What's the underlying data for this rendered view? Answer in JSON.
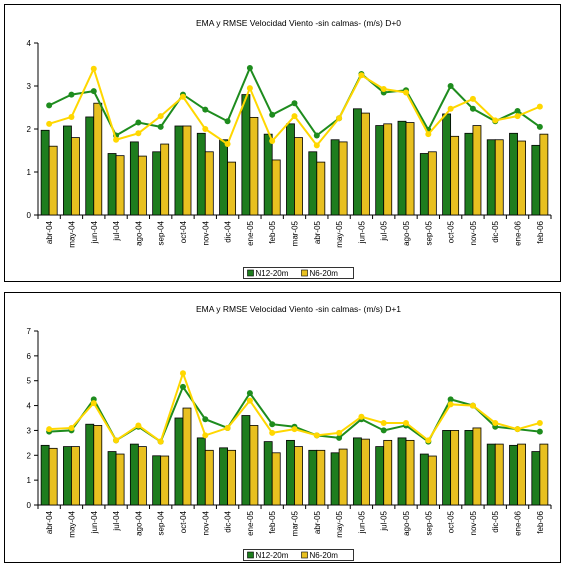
{
  "chart_data": [
    {
      "type": "bar",
      "title": "EMA y RMSE Velocidad Viento -sin calmas-  (m/s) D+0",
      "categories": [
        "abr-04",
        "may-04",
        "jun-04",
        "jul-04",
        "ago-04",
        "sep-04",
        "oct-04",
        "nov-04",
        "dic-04",
        "ene-05",
        "feb-05",
        "mar-05",
        "abr-05",
        "may-05",
        "jun-05",
        "jul-05",
        "ago-05",
        "sep-05",
        "oct-05",
        "nov-05",
        "dic-05",
        "ene-06",
        "feb-06"
      ],
      "ylim": [
        0,
        4
      ],
      "yticks": [
        "0",
        "1",
        "2",
        "3",
        "4"
      ],
      "series": [
        {
          "name": "N12-20m",
          "kind": "bar",
          "color": "#1e7d1e",
          "values": [
            1.97,
            2.07,
            2.28,
            1.43,
            1.7,
            1.47,
            2.07,
            1.9,
            1.75,
            2.8,
            1.88,
            2.12,
            1.47,
            1.75,
            2.47,
            2.08,
            2.18,
            1.43,
            2.35,
            1.9,
            1.75,
            1.9,
            1.62
          ]
        },
        {
          "name": "N6-20m",
          "kind": "bar",
          "color": "#e8c020",
          "values": [
            1.6,
            1.8,
            2.6,
            1.38,
            1.37,
            1.65,
            2.07,
            1.47,
            1.23,
            2.27,
            1.28,
            1.8,
            1.23,
            1.7,
            2.37,
            2.12,
            2.15,
            1.47,
            1.83,
            2.08,
            1.75,
            1.72,
            1.88
          ]
        },
        {
          "name": "",
          "kind": "line",
          "color": "#1e8c1e",
          "values": [
            2.55,
            2.8,
            2.88,
            1.85,
            2.15,
            2.05,
            2.8,
            2.45,
            2.18,
            3.42,
            2.33,
            2.6,
            1.85,
            2.25,
            3.28,
            2.85,
            2.9,
            1.98,
            3.0,
            2.47,
            2.18,
            2.42,
            2.05
          ]
        },
        {
          "name": "",
          "kind": "line",
          "color": "#ffd700",
          "values": [
            2.12,
            2.28,
            3.4,
            1.75,
            1.9,
            2.3,
            2.75,
            2.0,
            1.65,
            2.95,
            1.72,
            2.3,
            1.62,
            2.25,
            3.25,
            2.93,
            2.85,
            1.88,
            2.47,
            2.7,
            2.2,
            2.3,
            2.52
          ]
        }
      ],
      "legend": [
        {
          "label": "N12-20m",
          "color": "#1e7d1e"
        },
        {
          "label": "N6-20m",
          "color": "#e8c020"
        }
      ],
      "legend_position": "bottom-center",
      "grid": false
    },
    {
      "type": "bar",
      "title": "EMA y RMSE Velocidad Viento -sin calmas-  (m/s) D+1",
      "categories": [
        "abr-04",
        "may-04",
        "jun-04",
        "jul-04",
        "ago-04",
        "sep-04",
        "oct-04",
        "nov-04",
        "dic-04",
        "ene-05",
        "feb-05",
        "mar-05",
        "abr-05",
        "may-05",
        "jun-05",
        "jul-05",
        "ago-05",
        "sep-05",
        "oct-05",
        "nov-05",
        "dic-05",
        "ene-06",
        "feb-06"
      ],
      "ylim": [
        0,
        7
      ],
      "yticks": [
        "0",
        "1",
        "2",
        "3",
        "4",
        "5",
        "6",
        "7"
      ],
      "series": [
        {
          "name": "N12-20m",
          "kind": "bar",
          "color": "#1e7d1e",
          "values": [
            2.4,
            2.35,
            3.25,
            2.15,
            2.45,
            1.98,
            3.5,
            2.7,
            2.3,
            3.6,
            2.55,
            2.6,
            2.2,
            2.1,
            2.7,
            2.35,
            2.7,
            2.05,
            3.0,
            3.0,
            2.45,
            2.4,
            2.15
          ]
        },
        {
          "name": "N6-20m",
          "kind": "bar",
          "color": "#e8c020",
          "values": [
            2.28,
            2.35,
            3.2,
            2.05,
            2.35,
            1.97,
            3.9,
            2.2,
            2.2,
            3.2,
            2.1,
            2.35,
            2.2,
            2.25,
            2.65,
            2.6,
            2.6,
            1.97,
            3.0,
            3.1,
            2.45,
            2.45,
            2.45
          ]
        },
        {
          "name": "",
          "kind": "line",
          "color": "#1e8c1e",
          "values": [
            2.95,
            3.0,
            4.25,
            2.6,
            3.15,
            2.55,
            4.75,
            3.45,
            3.1,
            4.5,
            3.25,
            3.15,
            2.8,
            2.7,
            3.45,
            3.0,
            3.2,
            2.55,
            4.25,
            4.0,
            3.15,
            3.05,
            2.95
          ]
        },
        {
          "name": "",
          "kind": "line",
          "color": "#ffd700",
          "values": [
            3.05,
            3.1,
            4.1,
            2.6,
            3.2,
            2.55,
            5.3,
            2.8,
            3.1,
            4.2,
            2.9,
            3.05,
            2.8,
            2.9,
            3.55,
            3.3,
            3.3,
            2.6,
            4.05,
            4.0,
            3.3,
            3.05,
            3.3
          ]
        }
      ],
      "legend": [
        {
          "label": "N12-20m",
          "color": "#1e7d1e"
        },
        {
          "label": "N6-20m",
          "color": "#e8c020"
        }
      ],
      "legend_position": "bottom-center",
      "grid": false
    }
  ]
}
